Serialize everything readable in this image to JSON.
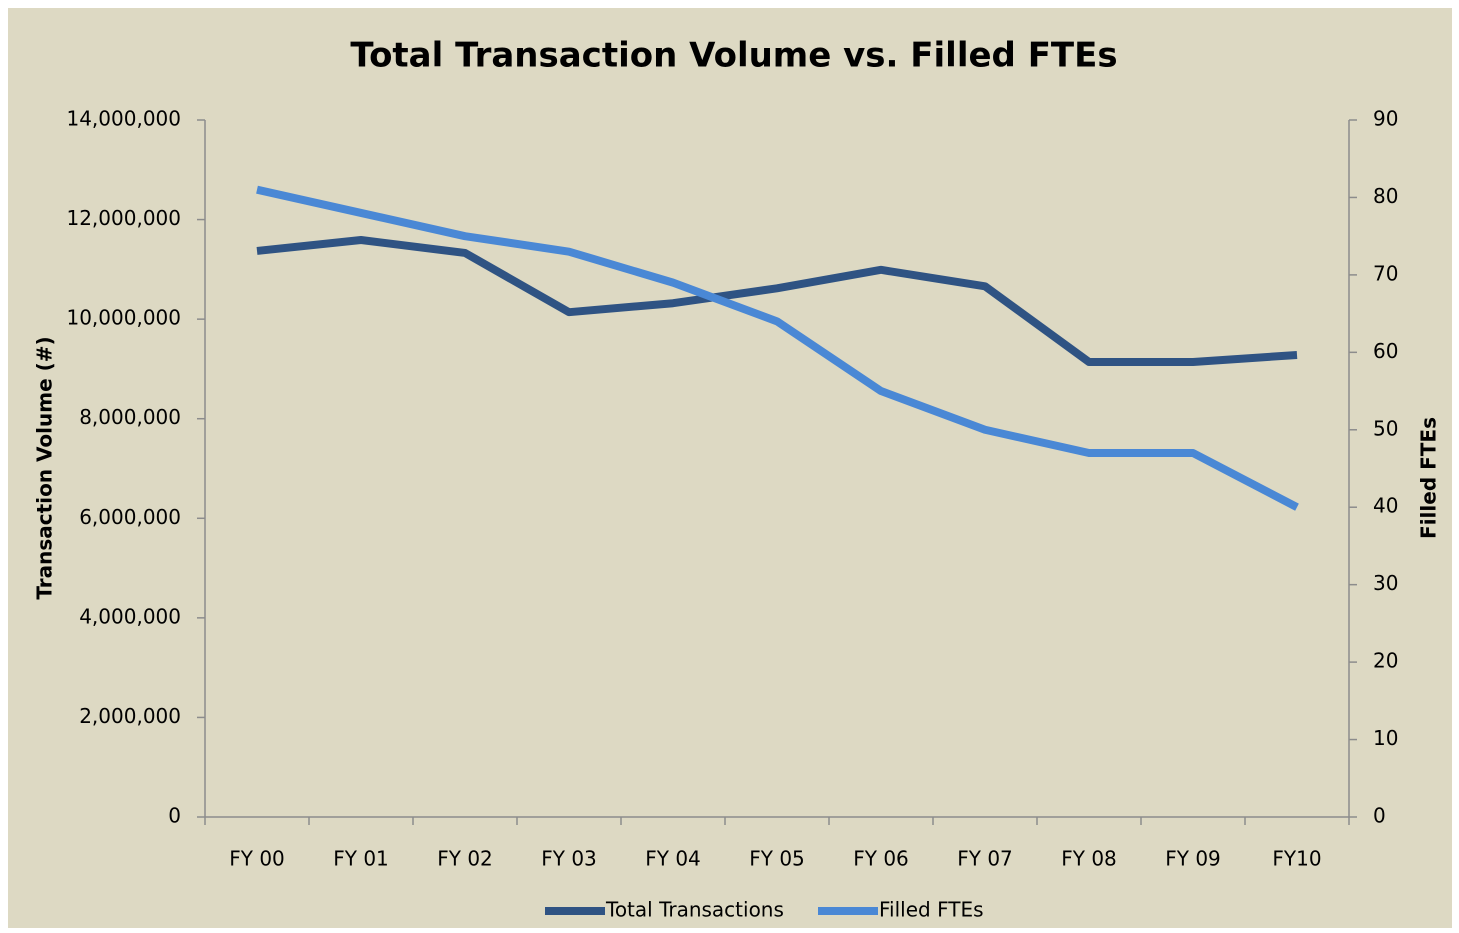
{
  "chart_data": {
    "type": "line",
    "title": "Total Transaction Volume vs. Filled FTEs",
    "y_label": "Transaction Volume (#)",
    "y2_label": "Filled FTEs",
    "categories": [
      "FY 00",
      "FY 01",
      "FY 02",
      "FY 03",
      "FY 04",
      "FY 05",
      "FY 06",
      "FY 07",
      "FY 08",
      "FY 09",
      "FY10"
    ],
    "series": [
      {
        "name": "Total Transactions",
        "color": "#2f5383",
        "values": [
          11370000,
          11590000,
          11330000,
          10140000,
          10320000,
          10620000,
          10990000,
          10660000,
          9140000,
          9140000,
          9280000
        ]
      },
      {
        "name": "Filled FTEs",
        "color": "#4a88d5",
        "axis": "y2",
        "values": [
          81,
          78,
          75,
          73,
          69,
          64,
          55,
          50,
          47,
          47,
          40
        ]
      }
    ],
    "ylim": [
      0,
      14000000
    ],
    "yticks": [
      0,
      {
        "value": 2000000,
        "label": "2,000,000"
      },
      {
        "value": 4000000,
        "label": "4,000,000"
      },
      {
        "value": 6000000,
        "label": "6,000,000"
      },
      {
        "value": 8000000,
        "label": "8,000,000"
      },
      {
        "value": 10000000,
        "label": "10,000,000"
      },
      {
        "value": 12000000,
        "label": "12,000,000"
      },
      {
        "value": 14000000,
        "label": "14,000,000"
      }
    ],
    "y2lim": [
      0,
      90
    ],
    "y2ticks": [
      0,
      10,
      20,
      30,
      40,
      50,
      60,
      70,
      80,
      90
    ],
    "legend": "bottom",
    "grid": false
  }
}
